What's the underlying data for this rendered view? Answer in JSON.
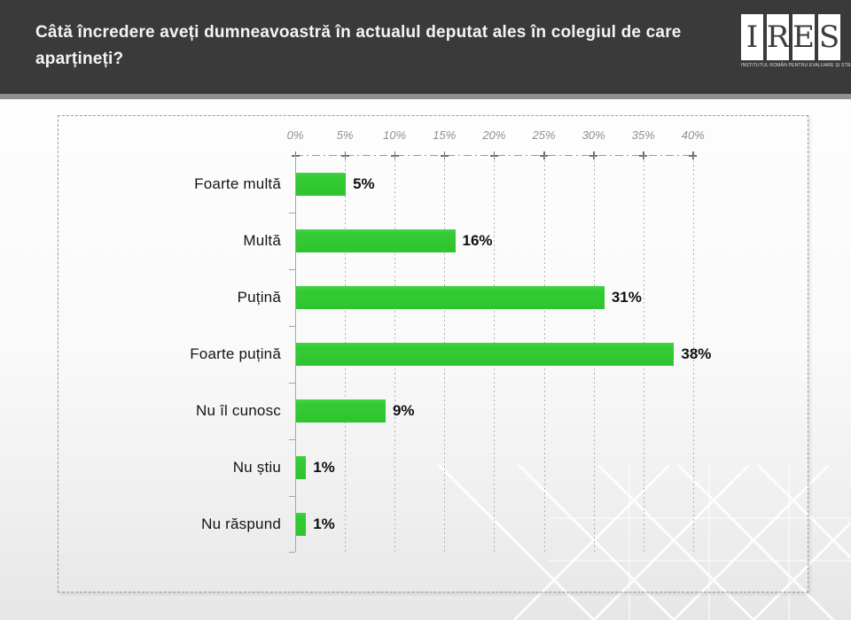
{
  "header": {
    "title": "Câtă încredere aveți dumneavoastră în actualul deputat ales în colegiul de care aparțineți?",
    "logo": {
      "letters": [
        "I",
        "R",
        "E",
        "S"
      ],
      "tagline": "INSTITUTUL ROMÂN PENTRU EVALUARE ȘI STRATEGIE"
    }
  },
  "chart_data": {
    "type": "bar",
    "orientation": "horizontal",
    "title": "",
    "xlabel": "",
    "ylabel": "",
    "categories": [
      "Foarte multă",
      "Multă",
      "Puțină",
      "Foarte puțină",
      "Nu îl cunosc",
      "Nu știu",
      "Nu răspund"
    ],
    "values": [
      5,
      16,
      31,
      38,
      9,
      1,
      1
    ],
    "value_labels": [
      "5%",
      "16%",
      "31%",
      "38%",
      "9%",
      "1%",
      "1%"
    ],
    "x_ticks": [
      "0%",
      "5%",
      "10%",
      "15%",
      "20%",
      "25%",
      "30%",
      "35%",
      "40%"
    ],
    "xlim": [
      0,
      40
    ],
    "grid": "dotted-vertical-on",
    "legend": "none",
    "bar_color": "#33cc33",
    "axis_color": "#a6a6a6",
    "tick_label_color": "#8f8f8f",
    "header_bg_color": "#3a3a3a"
  }
}
